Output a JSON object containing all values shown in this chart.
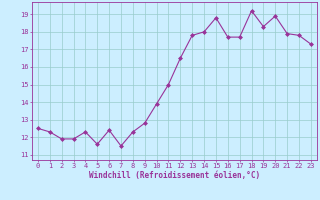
{
  "x": [
    0,
    1,
    2,
    3,
    4,
    5,
    6,
    7,
    8,
    9,
    10,
    11,
    12,
    13,
    14,
    15,
    16,
    17,
    18,
    19,
    20,
    21,
    22,
    23
  ],
  "y": [
    12.5,
    12.3,
    11.9,
    11.9,
    12.3,
    11.6,
    12.4,
    11.5,
    12.3,
    12.8,
    13.9,
    15.0,
    16.5,
    17.8,
    18.0,
    18.8,
    17.7,
    17.7,
    19.2,
    18.3,
    18.9,
    17.9,
    17.8,
    17.3
  ],
  "line_color": "#993399",
  "marker": "D",
  "marker_size": 2,
  "bg_color": "#cceeff",
  "grid_color": "#99cccc",
  "xlabel": "Windchill (Refroidissement éolien,°C)",
  "xlabel_color": "#993399",
  "tick_color": "#993399",
  "ylim": [
    10.7,
    19.7
  ],
  "yticks": [
    11,
    12,
    13,
    14,
    15,
    16,
    17,
    18,
    19
  ],
  "xticks": [
    0,
    1,
    2,
    3,
    4,
    5,
    6,
    7,
    8,
    9,
    10,
    11,
    12,
    13,
    14,
    15,
    16,
    17,
    18,
    19,
    20,
    21,
    22,
    23
  ],
  "spine_color": "#993399",
  "tick_fontsize": 5,
  "xlabel_fontsize": 5.5
}
